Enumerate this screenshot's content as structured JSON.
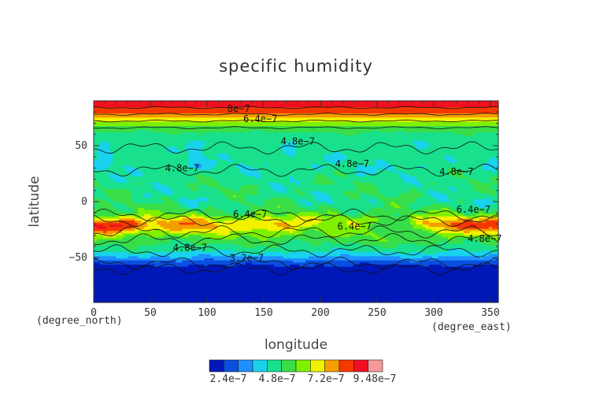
{
  "chart_data": {
    "type": "heatmap",
    "title": "specific humidity",
    "xlabel": "longitude",
    "ylabel": "latitude",
    "x_unit": "(degree_north)",
    "y_unit": "(degree_east)",
    "xlim": [
      0,
      357
    ],
    "ylim": [
      -90,
      90
    ],
    "x_ticks": [
      "0",
      "50",
      "100",
      "150",
      "200",
      "250",
      "300",
      "350"
    ],
    "y_ticks": [
      "50",
      "0",
      "−50"
    ],
    "contour_labels": [
      "8e−7",
      "6.4e−7",
      "4.8e−7",
      "4.8e−7",
      "4.8e−7",
      "4.8e−7",
      "6.4e−7",
      "6.4e−7",
      "6.4e−7",
      "4.8e−7",
      "4.8e−7",
      "3.2e−7"
    ],
    "colorbar": {
      "colors": [
        "#0018b8",
        "#0a4fe0",
        "#1e90ff",
        "#18d2ee",
        "#18e08c",
        "#38dd48",
        "#7ef000",
        "#f2f200",
        "#f59e00",
        "#f53800",
        "#f01020",
        "#f59a9a"
      ],
      "tick_labels": [
        "2.4e−7",
        "4.8e−7",
        "7.2e−7",
        "9.48e−7"
      ]
    }
  }
}
